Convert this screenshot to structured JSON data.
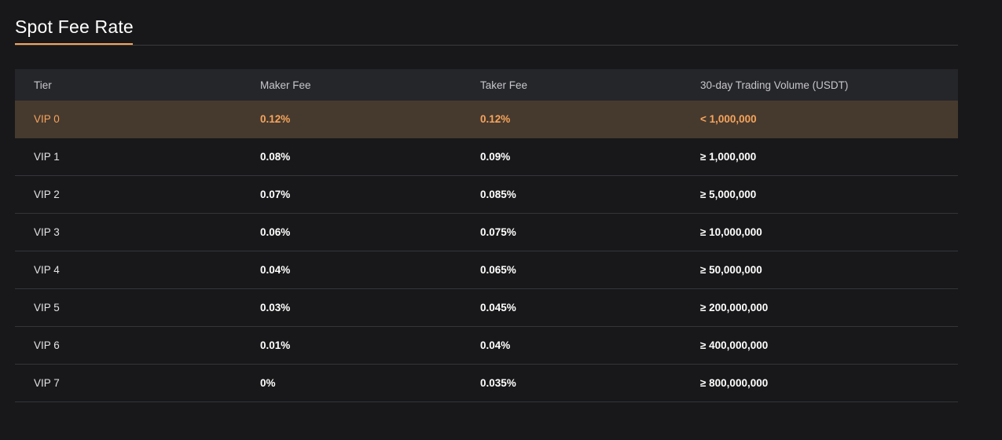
{
  "section": {
    "title": "Spot Fee Rate"
  },
  "colors": {
    "background": "#18181a",
    "accent": "#f7a45a",
    "header_bg": "#25262a",
    "current_row_bg": "#463a2f"
  },
  "table": {
    "headers": [
      "Tier",
      "Maker Fee",
      "Taker Fee",
      "30-day Trading Volume (USDT)"
    ],
    "rows": [
      {
        "tier": "VIP 0",
        "maker": "0.12%",
        "taker": "0.12%",
        "volume": "< 1,000,000",
        "current": true
      },
      {
        "tier": "VIP 1",
        "maker": "0.08%",
        "taker": "0.09%",
        "volume": "≥ 1,000,000"
      },
      {
        "tier": "VIP 2",
        "maker": "0.07%",
        "taker": "0.085%",
        "volume": "≥ 5,000,000"
      },
      {
        "tier": "VIP 3",
        "maker": "0.06%",
        "taker": "0.075%",
        "volume": "≥ 10,000,000"
      },
      {
        "tier": "VIP 4",
        "maker": "0.04%",
        "taker": "0.065%",
        "volume": "≥ 50,000,000"
      },
      {
        "tier": "VIP 5",
        "maker": "0.03%",
        "taker": "0.045%",
        "volume": "≥ 200,000,000"
      },
      {
        "tier": "VIP 6",
        "maker": "0.01%",
        "taker": "0.04%",
        "volume": "≥ 400,000,000"
      },
      {
        "tier": "VIP 7",
        "maker": "0%",
        "taker": "0.035%",
        "volume": "≥ 800,000,000"
      }
    ]
  }
}
